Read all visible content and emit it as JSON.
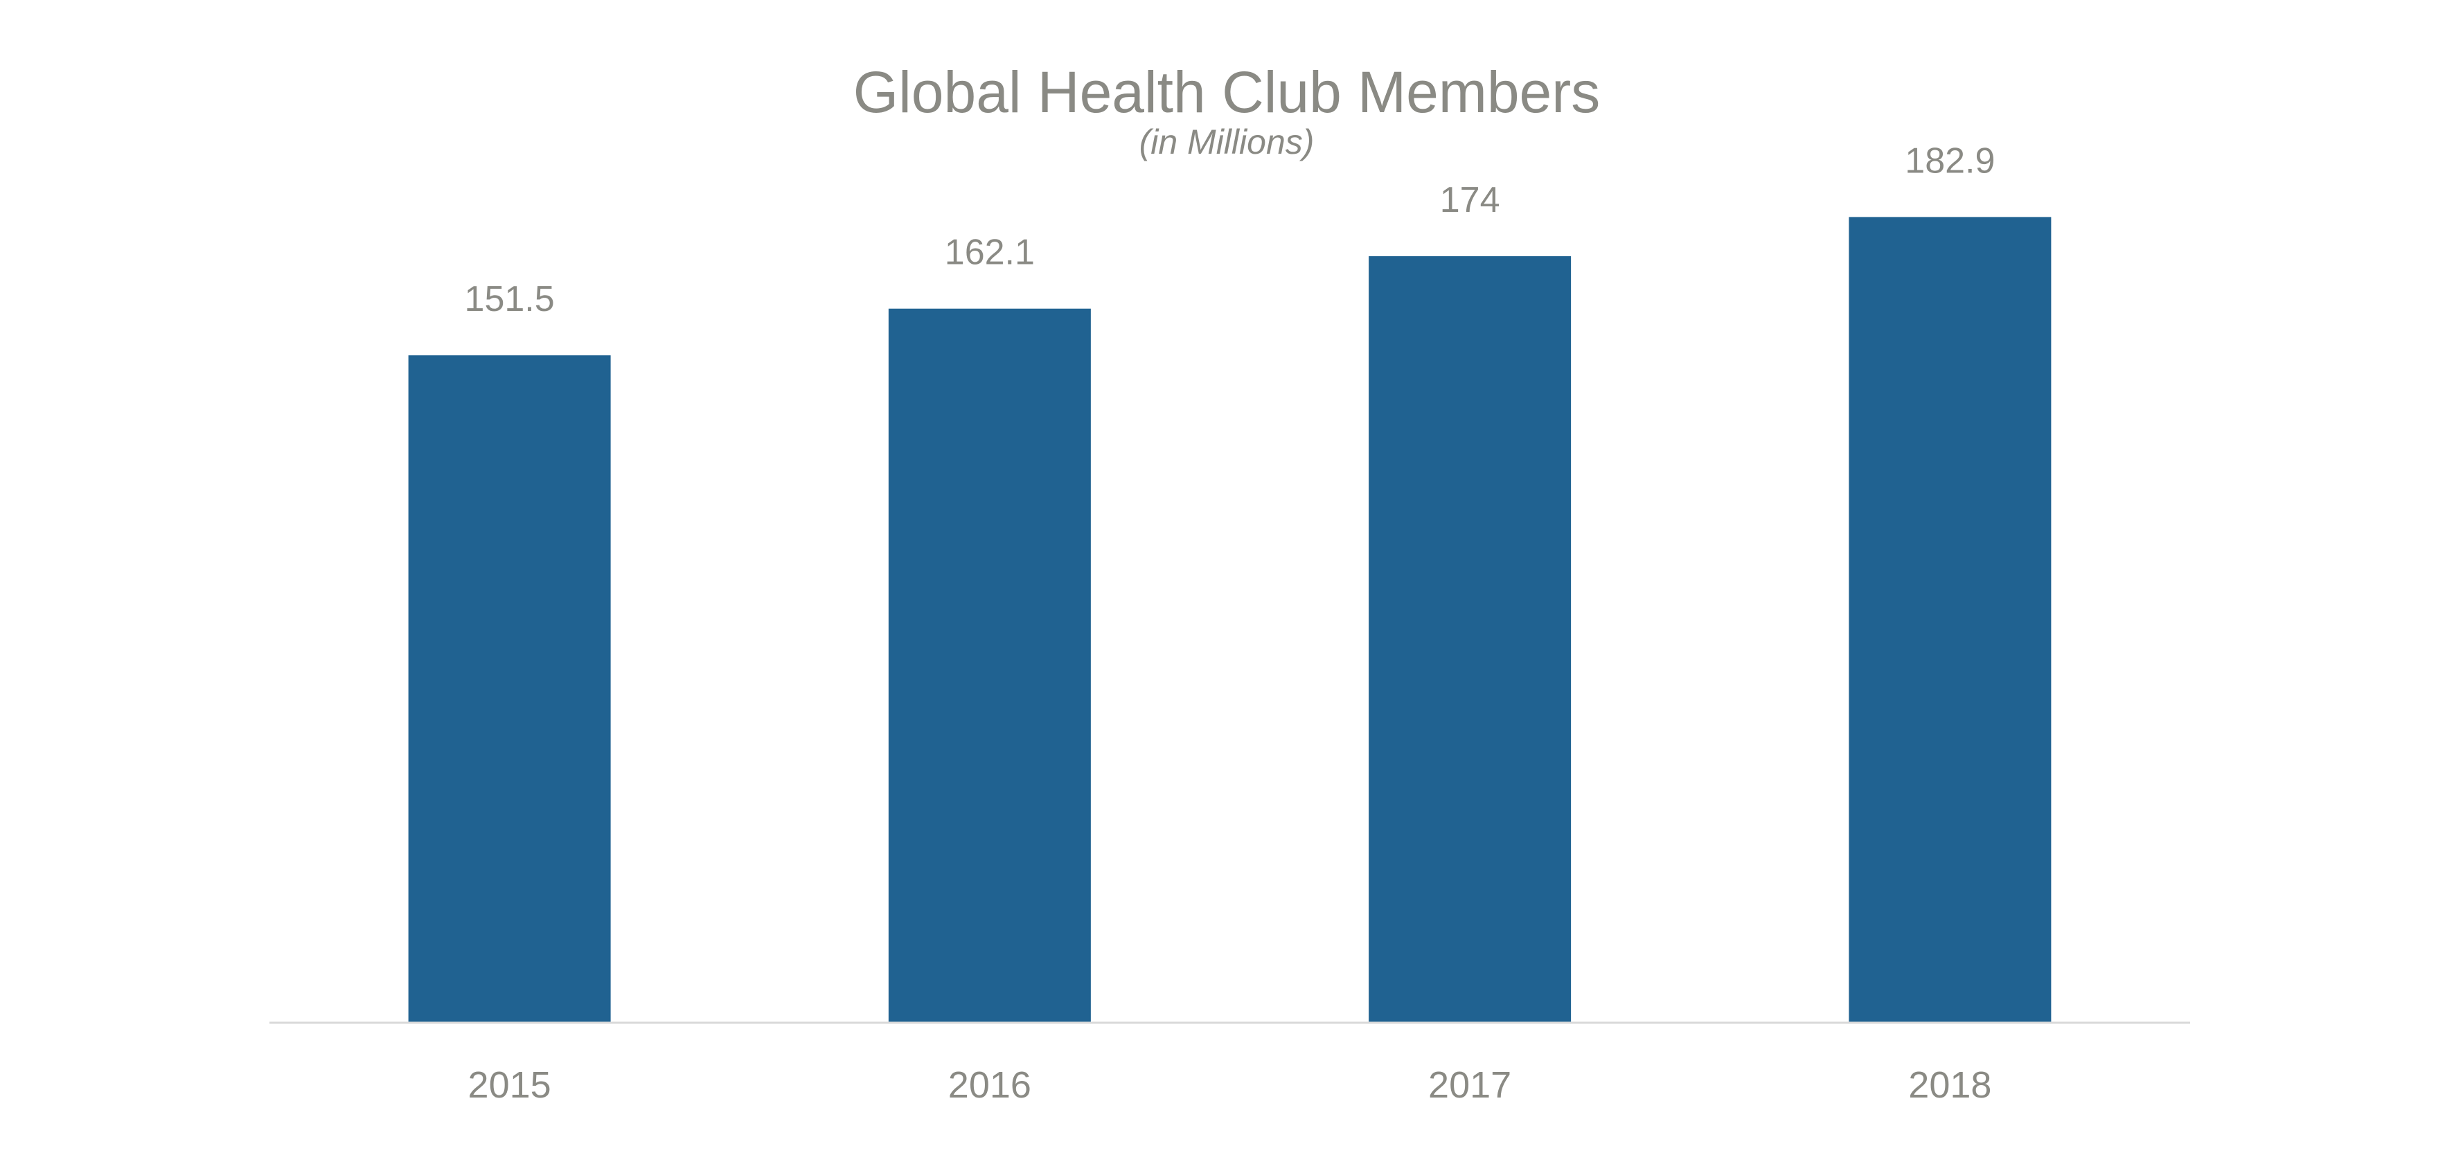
{
  "chart_data": {
    "type": "bar",
    "title": "Global Health Club Members",
    "subtitle": "(in Millions)",
    "categories": [
      "2015",
      "2016",
      "2017",
      "2018"
    ],
    "series": [
      {
        "values": [
          151.5,
          162.1,
          174,
          182.9
        ]
      }
    ],
    "data_labels": [
      "151.5",
      "162.1",
      "174",
      "182.9"
    ],
    "ylim": [
      0,
      200
    ],
    "grid": false,
    "legend": "none",
    "colors": {
      "bar": "#206291",
      "text": "#8a8a84",
      "axis": "#d9d9d9"
    }
  }
}
